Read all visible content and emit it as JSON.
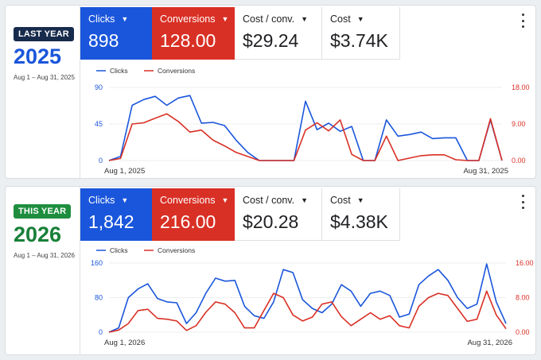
{
  "panels": [
    {
      "badge": "LAST YEAR",
      "badge_color": "#172b4d",
      "year": "2025",
      "year_color": "#1a56db",
      "date_range": "Aug 1 – Aug 31, 2025",
      "metrics": {
        "clicks": {
          "label": "Clicks",
          "value": "898"
        },
        "conversions": {
          "label": "Conversions",
          "value": "128.00"
        },
        "cost_per_conv": {
          "label": "Cost / conv.",
          "value": "$29.24"
        },
        "cost": {
          "label": "Cost",
          "value": "$3.74K"
        }
      },
      "chart_data": {
        "type": "line",
        "x_labels": [
          "Aug 1, 2025",
          "Aug 31, 2025"
        ],
        "legend": [
          "Clicks",
          "Conversions"
        ],
        "left_ticks": [
          "90",
          "45",
          "0"
        ],
        "right_ticks": [
          "18.00",
          "9.00",
          "0.00"
        ],
        "left_max": 90,
        "right_max": 18,
        "series": [
          {
            "name": "Clicks",
            "color": "#1a56db",
            "values": [
              0,
              5,
              68,
              75,
              79,
              68,
              77,
              80,
              46,
              47,
              43,
              25,
              10,
              0,
              0,
              0,
              0,
              73,
              38,
              46,
              36,
              42,
              0,
              0,
              50,
              30,
              32,
              35,
              27,
              28,
              28,
              0,
              0,
              50,
              0
            ]
          },
          {
            "name": "Conversions",
            "color": "#d93025",
            "values": [
              0,
              0.5,
              9.0,
              9.3,
              10.4,
              11.5,
              9.6,
              7.0,
              7.5,
              5.0,
              3.6,
              2.0,
              1.0,
              0,
              0,
              0,
              0,
              7.5,
              9.3,
              7.3,
              10.0,
              1.5,
              0,
              0,
              6.0,
              0,
              0.6,
              1.2,
              1.4,
              1.4,
              0.2,
              0,
              0,
              10.3,
              0
            ]
          }
        ]
      }
    },
    {
      "badge": "THIS YEAR",
      "badge_color": "#1e8e3e",
      "year": "2026",
      "year_color": "#188038",
      "date_range": "Aug 1 – Aug 31, 2026",
      "metrics": {
        "clicks": {
          "label": "Clicks",
          "value": "1,842"
        },
        "conversions": {
          "label": "Conversions",
          "value": "216.00"
        },
        "cost_per_conv": {
          "label": "Cost / conv.",
          "value": "$20.28"
        },
        "cost": {
          "label": "Cost",
          "value": "$4.38K"
        }
      },
      "chart_data": {
        "type": "line",
        "x_labels": [
          "Aug 1, 2026",
          "Aug 31, 2026"
        ],
        "legend": [
          "Clicks",
          "Conversions"
        ],
        "left_ticks": [
          "160",
          "80",
          "0"
        ],
        "right_ticks": [
          "16.00",
          "8.00",
          "0.00"
        ],
        "left_max": 160,
        "right_max": 16,
        "series": [
          {
            "name": "Clicks",
            "color": "#1a56db",
            "values": [
              0,
              10,
              80,
              100,
              112,
              78,
              70,
              68,
              20,
              45,
              90,
              125,
              118,
              120,
              60,
              38,
              32,
              70,
              145,
              138,
              75,
              55,
              45,
              65,
              110,
              95,
              60,
              90,
              95,
              85,
              35,
              42,
              110,
              130,
              145,
              120,
              80,
              55,
              65,
              158,
              70,
              20
            ]
          },
          {
            "name": "Conversions",
            "color": "#d93025",
            "values": [
              0,
              0.5,
              2.0,
              5.0,
              5.3,
              3.2,
              3.0,
              2.6,
              0.4,
              1.5,
              4.6,
              7.0,
              6.5,
              4.5,
              1.0,
              1.0,
              5.0,
              9.0,
              8.0,
              4.0,
              2.6,
              3.5,
              6.5,
              7.0,
              3.6,
              1.5,
              3.0,
              4.5,
              3.0,
              3.8,
              1.5,
              1.0,
              6.0,
              8.0,
              9.0,
              8.5,
              5.5,
              2.5,
              3.0,
              9.5,
              4.0,
              0.8
            ]
          }
        ]
      }
    }
  ]
}
